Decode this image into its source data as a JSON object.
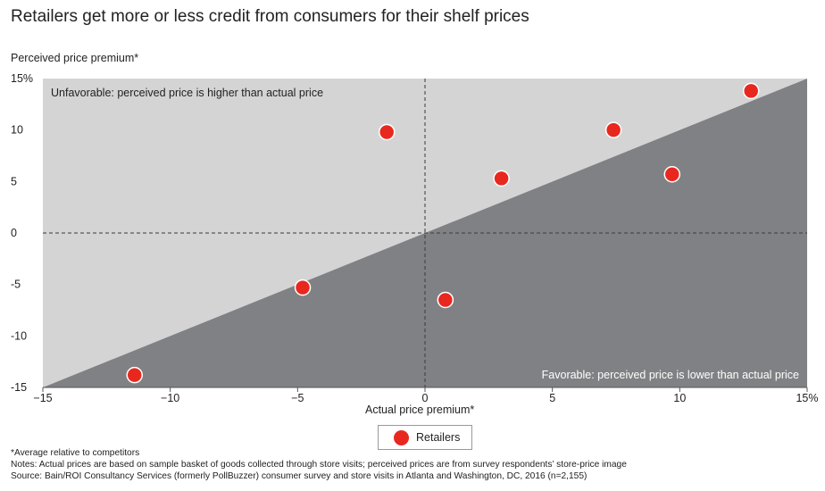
{
  "title": "Retailers get more or less credit from consumers for their shelf prices",
  "chart_data": {
    "type": "scatter",
    "ylabel": "Perceived price premium*",
    "xlabel": "Actual price premium*",
    "xlim": [
      -15,
      15
    ],
    "ylim": [
      -15,
      15
    ],
    "x_ticks": [
      "−15",
      "−10",
      "−5",
      "0",
      "5",
      "10",
      "15%"
    ],
    "x_tick_values": [
      -15,
      -10,
      -5,
      0,
      5,
      10,
      15
    ],
    "y_ticks": [
      "15%",
      "10",
      "5",
      "0",
      "-5",
      "-10",
      "-15"
    ],
    "y_tick_values": [
      15,
      10,
      5,
      0,
      -5,
      -10,
      -15
    ],
    "regions": {
      "unfavorable": "Unfavorable: perceived price is higher than actual price",
      "favorable": "Favorable: perceived price is lower than actual price"
    },
    "reference_line": "y = x",
    "series": [
      {
        "name": "Retailers",
        "color": "#e8281e",
        "points": [
          {
            "x": -11.4,
            "y": -13.8
          },
          {
            "x": -4.8,
            "y": -5.3
          },
          {
            "x": -1.5,
            "y": 9.8
          },
          {
            "x": 0.8,
            "y": -6.5
          },
          {
            "x": 3.0,
            "y": 5.3
          },
          {
            "x": 7.4,
            "y": 10.0
          },
          {
            "x": 9.7,
            "y": 5.7
          },
          {
            "x": 12.8,
            "y": 13.8
          }
        ]
      }
    ],
    "colors": {
      "unfavorable_region": "#d4d4d5",
      "favorable_region": "#808184",
      "marker": "#e8281e"
    }
  },
  "legend": {
    "label": "Retailers"
  },
  "footnotes": [
    "*Average relative to competitors",
    "Notes: Actual prices are based on sample basket of goods collected through store visits; perceived prices are from survey respondents’ store-price image",
    "Source: Bain/ROI Consultancy Services (formerly PollBuzzer) consumer survey and store visits in Atlanta and Washington, DC, 2016 (n=2,155)"
  ]
}
